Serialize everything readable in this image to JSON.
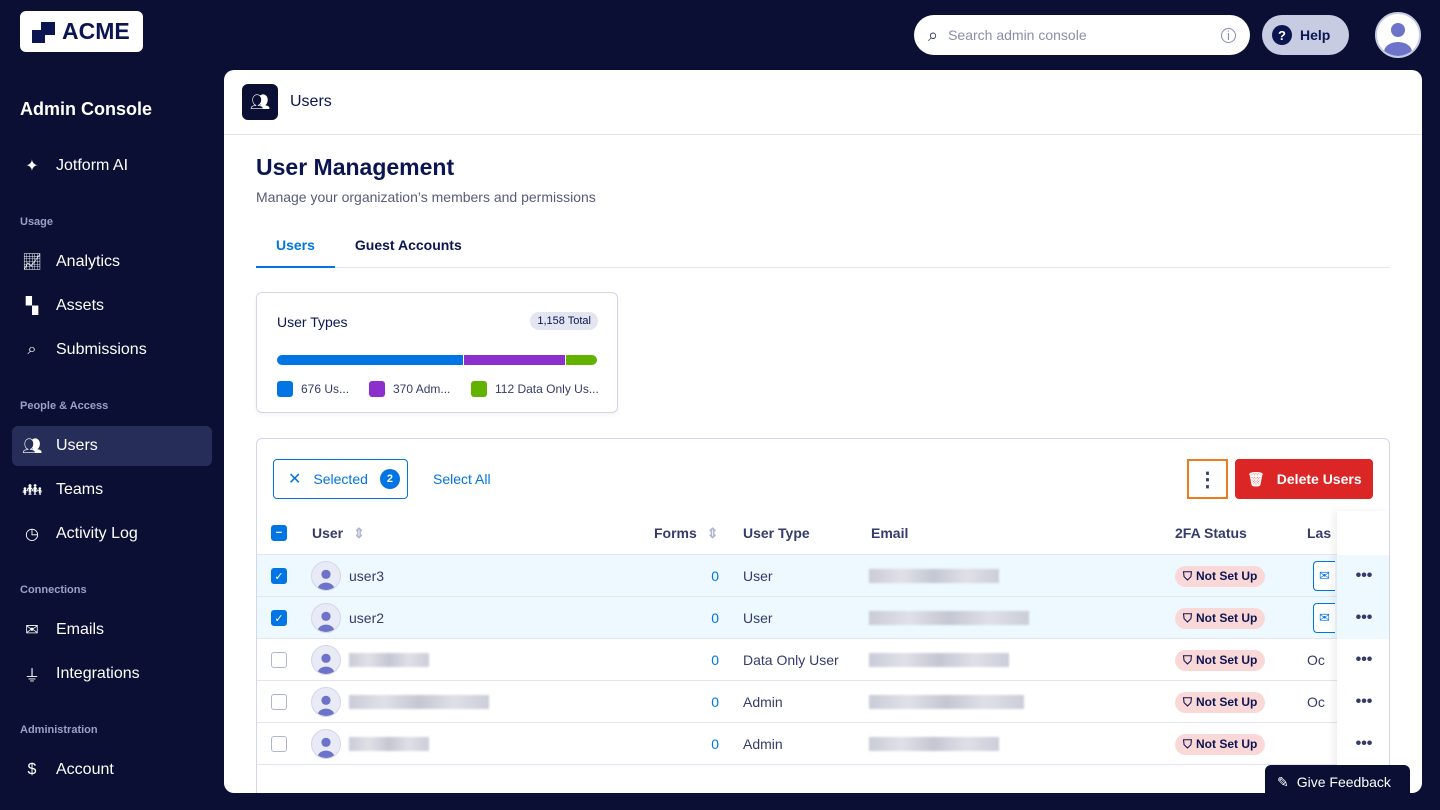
{
  "brand": {
    "logo_text": "ACME"
  },
  "topbar": {
    "search_placeholder": "Search admin console",
    "help_label": "Help"
  },
  "sidebar": {
    "title": "Admin Console",
    "top_item": {
      "label": "Jotform AI",
      "icon": "sparkle-icon"
    },
    "sections": [
      {
        "label": "Usage",
        "items": [
          {
            "label": "Analytics",
            "icon": "chart-line-icon"
          },
          {
            "label": "Assets",
            "icon": "shapes-icon"
          },
          {
            "label": "Submissions",
            "icon": "search-icon"
          }
        ]
      },
      {
        "label": "People & Access",
        "items": [
          {
            "label": "Users",
            "icon": "users-icon",
            "active": true
          },
          {
            "label": "Teams",
            "icon": "team-icon"
          },
          {
            "label": "Activity Log",
            "icon": "history-icon"
          }
        ]
      },
      {
        "label": "Connections",
        "items": [
          {
            "label": "Emails",
            "icon": "envelope-icon"
          },
          {
            "label": "Integrations",
            "icon": "plug-icon"
          }
        ]
      },
      {
        "label": "Administration",
        "items": [
          {
            "label": "Account",
            "icon": "document-dollar-icon"
          }
        ]
      }
    ]
  },
  "main": {
    "header_title": "Users",
    "page_title": "User Management",
    "subtitle": "Manage your organization’s members and permissions",
    "tabs": [
      {
        "label": "Users",
        "active": true
      },
      {
        "label": "Guest Accounts"
      }
    ],
    "user_types": {
      "title": "User Types",
      "total": "1,158 Total",
      "segments": [
        {
          "count": 676,
          "label": "676 Us...",
          "color": "#0075e3"
        },
        {
          "count": 370,
          "label": "370 Adm...",
          "color": "#8c2fcc"
        },
        {
          "count": 112,
          "label": "112 Data Only Us...",
          "color": "#64b200"
        }
      ]
    },
    "toolbar": {
      "selected_label": "Selected",
      "selected_count": "2",
      "select_all": "Select All",
      "delete_label": "Delete Users"
    },
    "columns": [
      "User",
      "Forms",
      "User Type",
      "Email",
      "2FA Status",
      "Las"
    ],
    "rows": [
      {
        "name": "user3",
        "forms": "0",
        "type": "User",
        "twofa": "Not Set Up",
        "last": "",
        "checked": true
      },
      {
        "name": "user2",
        "forms": "0",
        "type": "User",
        "twofa": "Not Set Up",
        "last": "",
        "checked": true
      },
      {
        "name": "",
        "forms": "0",
        "type": "Data Only User",
        "twofa": "Not Set Up",
        "last": "Oc",
        "checked": false
      },
      {
        "name": "",
        "forms": "0",
        "type": "Admin",
        "twofa": "Not Set Up",
        "last": "Oc",
        "checked": false
      },
      {
        "name": "",
        "forms": "0",
        "type": "Admin",
        "twofa": "Not Set Up",
        "last": "",
        "checked": false
      }
    ]
  },
  "feedback": {
    "label": "Give Feedback"
  }
}
